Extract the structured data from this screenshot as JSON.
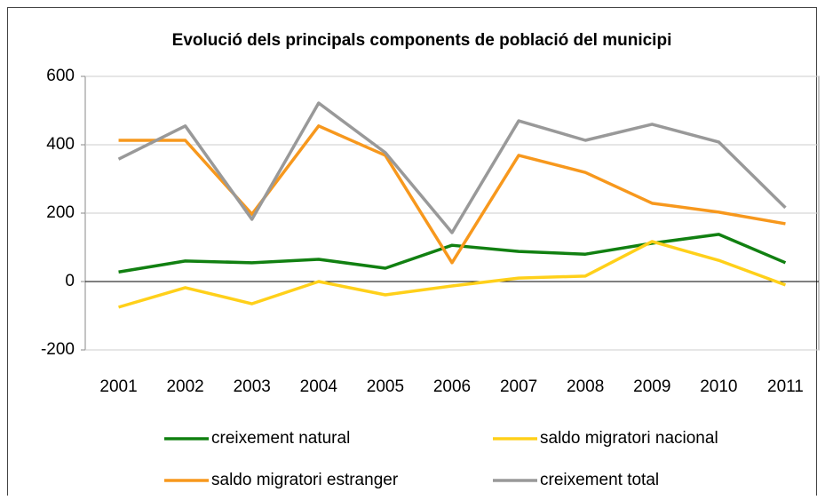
{
  "chart_data": {
    "type": "line",
    "title": "Evolució dels principals components de població del municipi",
    "categories": [
      "2001",
      "2002",
      "2003",
      "2004",
      "2005",
      "2006",
      "2007",
      "2008",
      "2009",
      "2010",
      "2011"
    ],
    "series": [
      {
        "name": "creixement natural",
        "color": "#118011",
        "values": [
          28,
          60,
          55,
          65,
          39,
          106,
          88,
          80,
          112,
          138,
          55
        ]
      },
      {
        "name": "saldo migratori nacional",
        "color": "#ffd01a",
        "values": [
          -75,
          -18,
          -65,
          0,
          -39,
          -13,
          10,
          16,
          117,
          62,
          -10
        ]
      },
      {
        "name": "saldo migratori estranger",
        "color": "#f7981d",
        "values": [
          413,
          413,
          197,
          455,
          369,
          55,
          369,
          319,
          229,
          203,
          169
        ]
      },
      {
        "name": "creixement total",
        "color": "#999999",
        "values": [
          358,
          455,
          182,
          522,
          377,
          143,
          470,
          413,
          460,
          408,
          216
        ]
      }
    ],
    "ylim": [
      -200,
      600
    ],
    "yticks": [
      -200,
      0,
      200,
      400,
      600
    ],
    "grid": true
  }
}
